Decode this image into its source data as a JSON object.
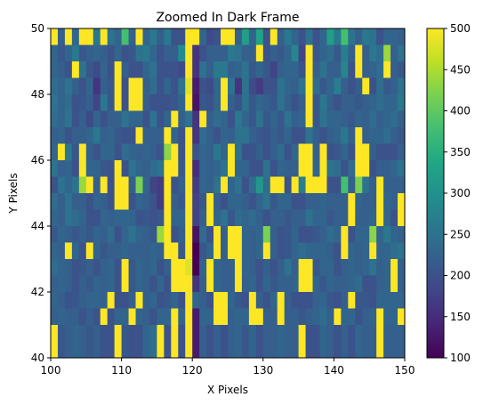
{
  "chart_data": {
    "type": "heatmap",
    "title": "Zoomed In Dark Frame",
    "xlabel": "X Pixels",
    "ylabel": "Y Pixels",
    "xlim": [
      100,
      150
    ],
    "ylim": [
      40,
      50
    ],
    "x_ticks": [
      100,
      110,
      120,
      130,
      140,
      150
    ],
    "y_ticks": [
      40,
      42,
      44,
      46,
      48,
      50
    ],
    "colorbar": {
      "colormap": "viridis",
      "vmin": 100,
      "vmax": 500,
      "ticks": [
        100,
        150,
        200,
        250,
        300,
        350,
        400,
        450,
        500
      ]
    },
    "rows_top_to_bottom": [
      [
        500,
        220,
        500,
        230,
        500,
        500,
        260,
        500,
        250,
        230,
        380,
        220,
        500,
        230,
        260,
        220,
        260,
        200,
        200,
        500,
        500,
        230,
        190,
        200,
        500,
        500,
        220,
        320,
        230,
        330,
        200,
        500,
        220,
        260,
        230,
        200,
        250,
        200,
        230,
        320,
        260,
        380,
        250,
        220,
        260,
        250,
        200,
        230,
        230,
        220
      ],
      [
        230,
        210,
        230,
        260,
        210,
        220,
        230,
        220,
        200,
        230,
        200,
        210,
        250,
        260,
        230,
        200,
        220,
        220,
        290,
        500,
        160,
        200,
        220,
        220,
        220,
        260,
        250,
        220,
        220,
        500,
        200,
        220,
        210,
        230,
        280,
        180,
        500,
        210,
        230,
        240,
        210,
        270,
        220,
        500,
        220,
        260,
        240,
        440,
        220,
        250
      ],
      [
        230,
        220,
        200,
        500,
        250,
        210,
        190,
        230,
        200,
        500,
        220,
        200,
        200,
        230,
        250,
        200,
        200,
        200,
        190,
        500,
        160,
        250,
        220,
        260,
        260,
        220,
        230,
        250,
        210,
        230,
        210,
        180,
        220,
        230,
        230,
        200,
        500,
        220,
        250,
        220,
        220,
        280,
        200,
        500,
        220,
        230,
        240,
        500,
        220,
        210
      ],
      [
        240,
        230,
        250,
        220,
        200,
        230,
        160,
        220,
        210,
        500,
        200,
        500,
        500,
        220,
        240,
        200,
        230,
        200,
        250,
        480,
        130,
        200,
        190,
        230,
        500,
        250,
        160,
        250,
        190,
        170,
        200,
        200,
        250,
        230,
        220,
        250,
        500,
        240,
        210,
        230,
        270,
        220,
        200,
        220,
        500,
        200,
        240,
        210,
        220,
        250
      ],
      [
        250,
        230,
        240,
        200,
        210,
        220,
        180,
        260,
        210,
        500,
        200,
        500,
        500,
        220,
        200,
        200,
        200,
        210,
        230,
        500,
        120,
        210,
        200,
        230,
        500,
        220,
        200,
        250,
        210,
        230,
        220,
        210,
        250,
        220,
        200,
        220,
        500,
        210,
        260,
        220,
        200,
        220,
        220,
        210,
        220,
        230,
        240,
        230,
        230,
        260
      ],
      [
        240,
        230,
        250,
        200,
        220,
        190,
        230,
        200,
        220,
        220,
        250,
        230,
        230,
        200,
        250,
        200,
        230,
        500,
        220,
        250,
        160,
        500,
        220,
        240,
        230,
        200,
        260,
        230,
        210,
        250,
        210,
        230,
        210,
        250,
        220,
        230,
        500,
        210,
        250,
        230,
        230,
        220,
        210,
        230,
        220,
        240,
        220,
        230,
        240,
        220
      ],
      [
        220,
        230,
        200,
        220,
        220,
        230,
        260,
        220,
        230,
        210,
        200,
        200,
        500,
        220,
        220,
        220,
        500,
        230,
        200,
        500,
        160,
        240,
        220,
        200,
        230,
        220,
        250,
        250,
        220,
        210,
        200,
        220,
        210,
        230,
        200,
        200,
        250,
        220,
        200,
        220,
        230,
        260,
        220,
        500,
        220,
        230,
        230,
        240,
        220,
        210
      ],
      [
        230,
        500,
        260,
        210,
        500,
        220,
        200,
        230,
        230,
        200,
        240,
        230,
        220,
        230,
        220,
        200,
        430,
        500,
        200,
        500,
        200,
        230,
        220,
        260,
        230,
        500,
        250,
        200,
        200,
        220,
        200,
        220,
        240,
        200,
        230,
        500,
        500,
        220,
        500,
        200,
        210,
        230,
        200,
        500,
        500,
        220,
        200,
        200,
        200,
        220
      ],
      [
        250,
        220,
        230,
        200,
        500,
        230,
        230,
        210,
        200,
        500,
        200,
        250,
        230,
        220,
        240,
        250,
        500,
        500,
        210,
        500,
        150,
        230,
        220,
        230,
        250,
        500,
        230,
        230,
        200,
        200,
        250,
        200,
        230,
        220,
        220,
        500,
        500,
        230,
        500,
        250,
        240,
        200,
        240,
        500,
        500,
        200,
        220,
        220,
        230,
        250
      ],
      [
        200,
        250,
        230,
        250,
        440,
        500,
        220,
        500,
        200,
        500,
        500,
        220,
        420,
        230,
        180,
        170,
        500,
        200,
        220,
        500,
        170,
        230,
        220,
        250,
        500,
        230,
        250,
        200,
        240,
        310,
        240,
        500,
        500,
        200,
        500,
        270,
        500,
        500,
        500,
        200,
        200,
        380,
        220,
        420,
        250,
        220,
        500,
        220,
        220,
        220
      ],
      [
        240,
        220,
        250,
        220,
        220,
        200,
        230,
        220,
        200,
        500,
        500,
        200,
        230,
        220,
        200,
        170,
        500,
        220,
        210,
        500,
        180,
        210,
        500,
        220,
        200,
        230,
        230,
        220,
        200,
        230,
        250,
        210,
        230,
        230,
        200,
        200,
        220,
        220,
        230,
        220,
        220,
        220,
        500,
        230,
        220,
        220,
        500,
        230,
        220,
        500
      ],
      [
        230,
        220,
        250,
        240,
        230,
        200,
        200,
        230,
        220,
        230,
        230,
        230,
        200,
        210,
        200,
        210,
        500,
        230,
        230,
        500,
        180,
        220,
        500,
        230,
        250,
        210,
        240,
        230,
        240,
        220,
        200,
        220,
        220,
        210,
        220,
        220,
        250,
        230,
        230,
        210,
        220,
        220,
        500,
        220,
        220,
        230,
        500,
        230,
        200,
        500
      ],
      [
        210,
        230,
        220,
        210,
        220,
        210,
        230,
        220,
        240,
        200,
        230,
        250,
        230,
        220,
        210,
        440,
        500,
        200,
        220,
        500,
        120,
        240,
        200,
        500,
        220,
        500,
        500,
        230,
        220,
        230,
        420,
        220,
        200,
        210,
        230,
        200,
        200,
        210,
        220,
        240,
        230,
        500,
        200,
        230,
        230,
        430,
        230,
        260,
        230,
        220
      ],
      [
        230,
        220,
        500,
        230,
        200,
        500,
        230,
        210,
        220,
        220,
        230,
        220,
        220,
        220,
        230,
        220,
        500,
        500,
        210,
        500,
        100,
        210,
        230,
        500,
        220,
        500,
        500,
        230,
        220,
        230,
        500,
        220,
        200,
        210,
        230,
        240,
        230,
        230,
        230,
        220,
        200,
        500,
        230,
        220,
        230,
        500,
        230,
        230,
        240,
        250
      ],
      [
        240,
        230,
        220,
        200,
        210,
        220,
        200,
        220,
        230,
        200,
        500,
        210,
        230,
        220,
        230,
        200,
        220,
        500,
        500,
        480,
        100,
        230,
        500,
        230,
        220,
        220,
        500,
        230,
        220,
        200,
        220,
        200,
        220,
        250,
        220,
        500,
        500,
        210,
        230,
        230,
        200,
        220,
        230,
        220,
        230,
        250,
        220,
        230,
        500,
        220
      ],
      [
        220,
        230,
        220,
        200,
        220,
        210,
        230,
        220,
        230,
        200,
        500,
        210,
        230,
        220,
        200,
        230,
        200,
        500,
        500,
        500,
        160,
        220,
        500,
        230,
        220,
        220,
        500,
        220,
        230,
        200,
        230,
        210,
        220,
        220,
        230,
        500,
        500,
        230,
        210,
        230,
        220,
        220,
        230,
        240,
        200,
        200,
        220,
        230,
        500,
        220
      ],
      [
        230,
        220,
        200,
        210,
        220,
        230,
        230,
        220,
        500,
        200,
        200,
        220,
        500,
        220,
        230,
        200,
        210,
        230,
        200,
        500,
        230,
        220,
        200,
        500,
        500,
        230,
        210,
        200,
        500,
        220,
        200,
        230,
        500,
        220,
        200,
        200,
        200,
        220,
        230,
        210,
        200,
        220,
        500,
        210,
        210,
        200,
        230,
        230,
        230,
        230
      ],
      [
        220,
        230,
        220,
        220,
        200,
        220,
        200,
        500,
        200,
        230,
        230,
        500,
        230,
        220,
        200,
        230,
        230,
        500,
        230,
        500,
        130,
        230,
        230,
        500,
        500,
        220,
        230,
        230,
        500,
        500,
        220,
        220,
        500,
        220,
        220,
        210,
        220,
        230,
        240,
        220,
        500,
        230,
        230,
        200,
        220,
        230,
        500,
        230,
        230,
        500
      ],
      [
        500,
        210,
        220,
        230,
        220,
        210,
        220,
        200,
        200,
        500,
        210,
        200,
        200,
        230,
        240,
        500,
        200,
        500,
        200,
        500,
        130,
        220,
        200,
        220,
        200,
        220,
        230,
        210,
        230,
        200,
        220,
        220,
        230,
        220,
        220,
        500,
        200,
        200,
        230,
        220,
        200,
        220,
        200,
        230,
        220,
        220,
        500,
        220,
        220,
        220
      ],
      [
        500,
        210,
        220,
        230,
        220,
        210,
        220,
        200,
        200,
        500,
        210,
        200,
        200,
        230,
        240,
        500,
        200,
        500,
        200,
        500,
        130,
        220,
        200,
        220,
        200,
        220,
        230,
        210,
        230,
        200,
        220,
        220,
        230,
        220,
        220,
        500,
        200,
        200,
        230,
        220,
        200,
        220,
        200,
        230,
        220,
        220,
        500,
        220,
        220,
        220
      ]
    ]
  }
}
